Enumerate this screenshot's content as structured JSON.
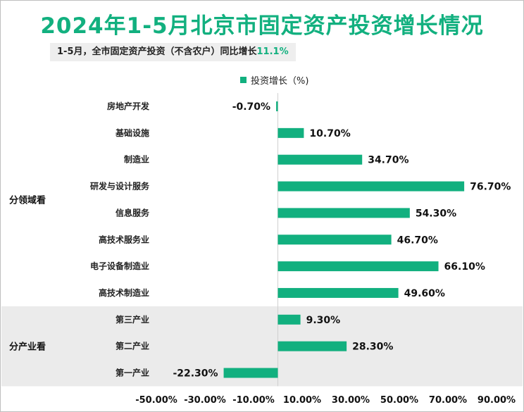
{
  "title": "2024年1-5月北京市固定资产投资增长情况",
  "subtitle": {
    "text": "1-5月，全市固定资产投资（不含农户）同比增长",
    "highlight": "11.1%"
  },
  "colors": {
    "bar": "#12b07f",
    "band": "#ebebeb",
    "title": "#12b07f"
  },
  "chart_data": {
    "type": "bar",
    "orientation": "horizontal",
    "title": "2024年1-5月北京市固定资产投资增长情况",
    "legend": [
      "投资增长（%)"
    ],
    "legend_position": "top",
    "xlim": [
      -50,
      90
    ],
    "x_ticks": [
      "-50.00%",
      "-30.00%",
      "-10.00%",
      "10.00%",
      "30.00%",
      "50.00%",
      "70.00%",
      "90.00%"
    ],
    "x_tick_values": [
      -50,
      -30,
      -10,
      10,
      30,
      50,
      70,
      90
    ],
    "groups": [
      {
        "name": "分领域看",
        "categories": [
          "房地产开发",
          "基础设施",
          "制造业",
          "研发与设计服务",
          "信息服务",
          "高技术服务业",
          "电子设备制造业",
          "高技术制造业"
        ],
        "values": [
          -0.7,
          10.7,
          34.7,
          76.7,
          54.3,
          46.7,
          66.1,
          49.6
        ],
        "labels": [
          "-0.70%",
          "10.70%",
          "34.70%",
          "76.70%",
          "54.30%",
          "46.70%",
          "66.10%",
          "49.60%"
        ]
      },
      {
        "name": "分产业看",
        "categories": [
          "第三产业",
          "第二产业",
          "第一产业"
        ],
        "values": [
          9.3,
          28.3,
          -22.3
        ],
        "labels": [
          "9.30%",
          "28.30%",
          "-22.30%"
        ]
      }
    ]
  }
}
